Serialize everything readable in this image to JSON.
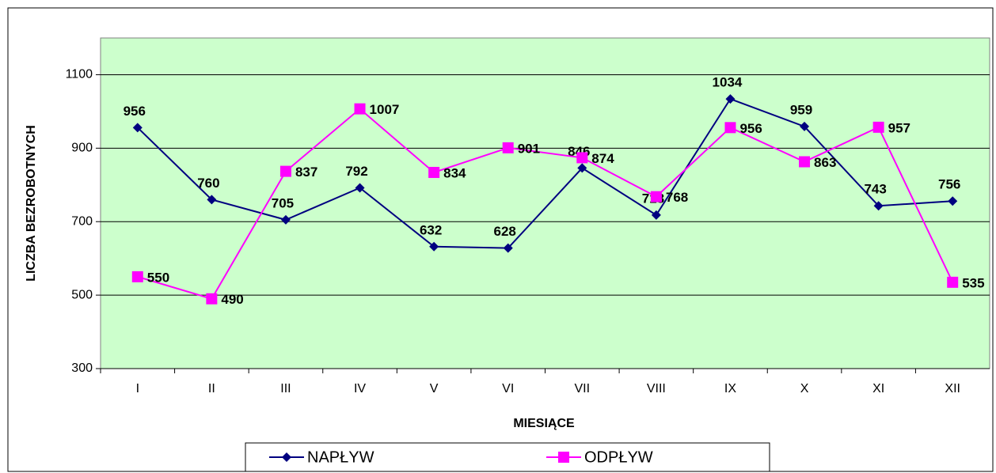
{
  "chart_data": {
    "type": "line",
    "categories": [
      "I",
      "II",
      "III",
      "IV",
      "V",
      "VI",
      "VII",
      "VIII",
      "IX",
      "X",
      "XI",
      "XII"
    ],
    "series": [
      {
        "name": "NAPŁYW",
        "color": "#000080",
        "marker": "diamond",
        "values": [
          956,
          760,
          705,
          792,
          632,
          628,
          846,
          718,
          1034,
          959,
          743,
          756
        ]
      },
      {
        "name": "ODPŁYW",
        "color": "#ff00ff",
        "marker": "square",
        "values": [
          550,
          490,
          837,
          1007,
          834,
          901,
          874,
          768,
          956,
          863,
          957,
          535
        ]
      }
    ],
    "ylim": [
      300,
      1200
    ],
    "yticks": [
      300,
      500,
      700,
      900,
      1100
    ],
    "grid": true,
    "x_label": "MIESIĄCE",
    "y_label": "LICZBA BEZROBOTNYCH",
    "legend": "bottom"
  }
}
